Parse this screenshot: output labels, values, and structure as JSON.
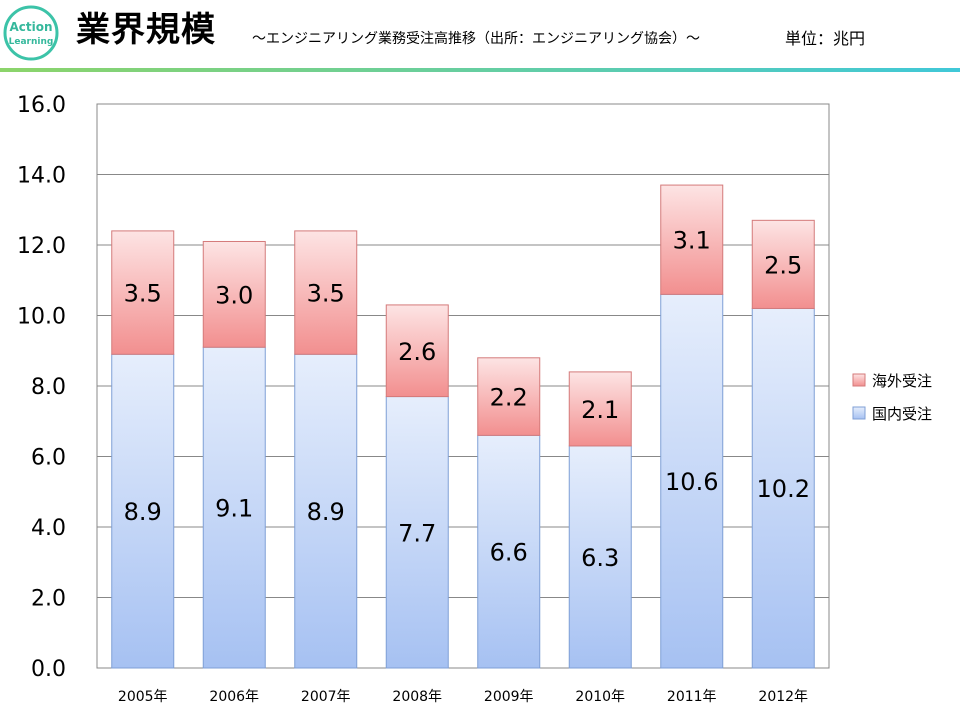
{
  "header": {
    "title": "業界規模",
    "subtitle": "～エンジニアリング業務受注高推移（出所：エンジニアリング協会）～",
    "unit": "単位：兆円",
    "logo_line1": "Action",
    "logo_line2": "Learning"
  },
  "colors": {
    "overseas_top": "#fde4e4",
    "overseas_bottom": "#f28f8f",
    "domestic_top": "#e6eefc",
    "domestic_bottom": "#a6c1f2",
    "grid": "#888888"
  },
  "chart_data": {
    "type": "bar",
    "stacked": true,
    "title": "業界規模",
    "categories": [
      "2005年",
      "2006年",
      "2007年",
      "2008年",
      "2009年",
      "2010年",
      "2011年",
      "2012年"
    ],
    "series": [
      {
        "name": "国内受注",
        "values": [
          8.9,
          9.1,
          8.9,
          7.7,
          6.6,
          6.3,
          10.6,
          10.2
        ]
      },
      {
        "name": "海外受注",
        "values": [
          3.5,
          3.0,
          3.5,
          2.6,
          2.2,
          2.1,
          3.1,
          2.5
        ]
      }
    ],
    "ylim": [
      0,
      16
    ],
    "yticks": [
      "0.0",
      "2.0",
      "4.0",
      "6.0",
      "8.0",
      "10.0",
      "12.0",
      "14.0",
      "16.0"
    ],
    "xlabel": "",
    "ylabel": "",
    "legend": [
      "海外受注",
      "国内受注"
    ],
    "legend_position": "right",
    "grid": true
  }
}
